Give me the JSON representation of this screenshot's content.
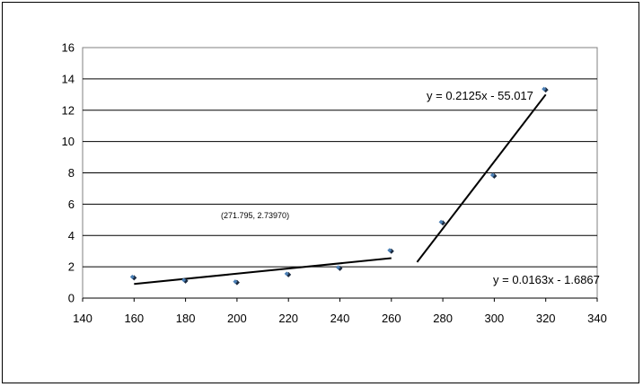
{
  "chart_data": {
    "type": "scatter",
    "title": "",
    "xlabel": "",
    "ylabel": "",
    "xlim": [
      140,
      340
    ],
    "ylim": [
      0,
      16
    ],
    "x_ticks": [
      140,
      160,
      180,
      200,
      220,
      240,
      260,
      280,
      300,
      320,
      340
    ],
    "y_ticks": [
      0,
      2,
      4,
      6,
      8,
      10,
      12,
      14,
      16
    ],
    "grid": "horizontal",
    "legend": "none",
    "series": [
      {
        "points": [
          {
            "x": 160,
            "y": 1.3
          },
          {
            "x": 180,
            "y": 1.1
          },
          {
            "x": 200,
            "y": 1.0
          },
          {
            "x": 220,
            "y": 1.5
          },
          {
            "x": 240,
            "y": 1.9
          },
          {
            "x": 260,
            "y": 3.0
          },
          {
            "x": 280,
            "y": 4.8
          },
          {
            "x": 300,
            "y": 7.8
          },
          {
            "x": 320,
            "y": 13.3
          }
        ],
        "marker_color": "#4a7fb5"
      }
    ],
    "trendlines": [
      {
        "equation": "y = 0.0163x - 1.6867",
        "x_range": [
          160,
          260
        ],
        "y_range": [
          0.9,
          2.55
        ]
      },
      {
        "equation": "y = 0.2125x - 55.017",
        "x_range": [
          270,
          320
        ],
        "y_range": [
          2.3,
          13.0
        ]
      }
    ],
    "annotations": [
      {
        "text": "(271.795, 2.73970)"
      }
    ]
  }
}
